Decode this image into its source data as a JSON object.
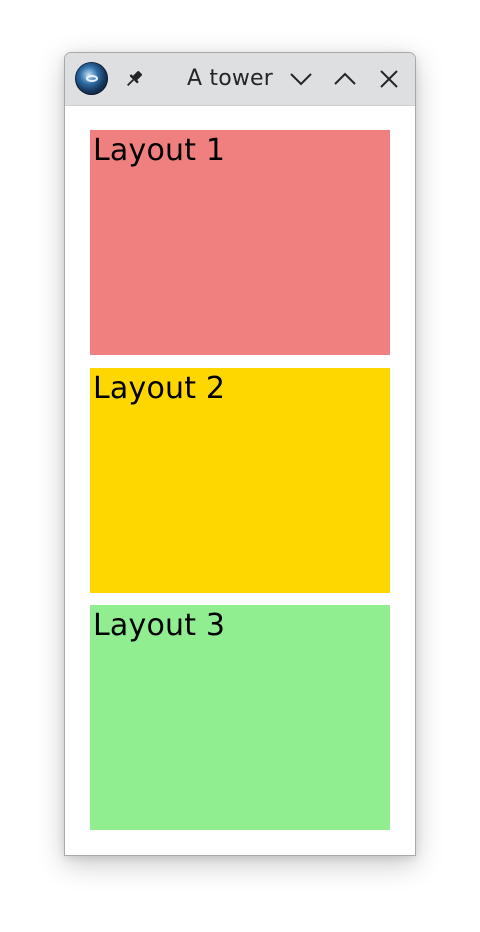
{
  "window": {
    "title": "A tower",
    "buttons": {
      "pin": "pin-icon",
      "minimize": "chevron-down-icon",
      "maximize": "chevron-up-icon",
      "close": "close-icon"
    }
  },
  "layouts": [
    {
      "label": "Layout 1",
      "color": "#f08080"
    },
    {
      "label": "Layout 2",
      "color": "#ffd700"
    },
    {
      "label": "Layout 3",
      "color": "#90ee90"
    }
  ]
}
